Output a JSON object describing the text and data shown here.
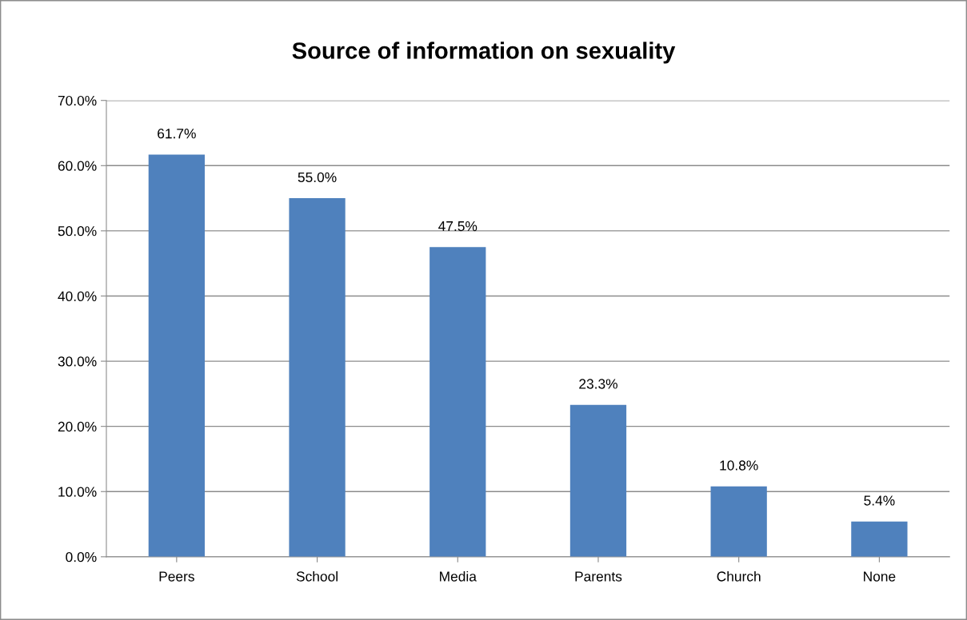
{
  "chart_data": {
    "type": "bar",
    "title": "Source of information on sexuality",
    "categories": [
      "Peers",
      "School",
      "Media",
      "Parents",
      "Church",
      "None"
    ],
    "values": [
      61.7,
      55.0,
      47.5,
      23.3,
      10.8,
      5.4
    ],
    "value_labels": [
      "61.7%",
      "55.0%",
      "47.5%",
      "23.3%",
      "10.8%",
      "5.4%"
    ],
    "color": "#4f81bd",
    "ylim": [
      0,
      70
    ],
    "yticks": [
      {
        "value": 0,
        "label": "0.0%"
      },
      {
        "value": 10,
        "label": "10.0%"
      },
      {
        "value": 20,
        "label": "20.0%"
      },
      {
        "value": 30,
        "label": "30.0%"
      },
      {
        "value": 40,
        "label": "40.0%"
      },
      {
        "value": 50,
        "label": "50.0%"
      },
      {
        "value": 60,
        "label": "60.0%"
      },
      {
        "value": 70,
        "label": "70.0%"
      }
    ],
    "grid": "y",
    "legend": false
  }
}
